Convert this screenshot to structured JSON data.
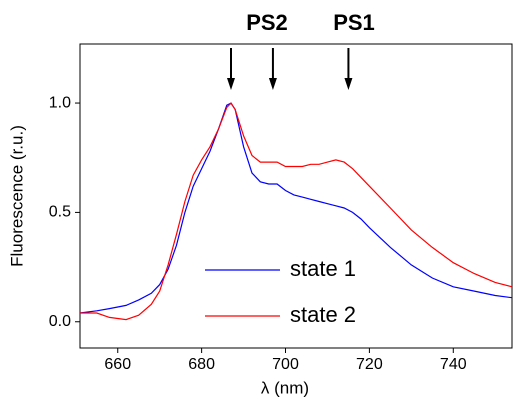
{
  "chart_data": {
    "type": "line",
    "x_label": "λ (nm)",
    "y_label": "Fluorescence (r.u.)",
    "x": [
      651,
      655,
      658,
      662,
      665,
      668,
      670,
      672,
      674,
      676,
      678,
      680,
      682,
      684,
      686,
      687,
      688,
      690,
      692,
      694,
      696,
      698,
      700,
      702,
      704,
      706,
      708,
      710,
      712,
      714,
      716,
      718,
      720,
      725,
      730,
      735,
      740,
      745,
      750,
      754
    ],
    "series": [
      {
        "name": "state 1",
        "color": "#0000ff",
        "values": [
          0.04,
          0.05,
          0.06,
          0.075,
          0.1,
          0.13,
          0.17,
          0.24,
          0.35,
          0.5,
          0.62,
          0.7,
          0.78,
          0.88,
          0.99,
          1.0,
          0.97,
          0.8,
          0.68,
          0.64,
          0.63,
          0.63,
          0.6,
          0.58,
          0.57,
          0.56,
          0.55,
          0.54,
          0.53,
          0.52,
          0.5,
          0.47,
          0.43,
          0.34,
          0.26,
          0.2,
          0.16,
          0.14,
          0.12,
          0.11
        ]
      },
      {
        "name": "state 2",
        "color": "#ff0000",
        "values": [
          0.04,
          0.04,
          0.02,
          0.01,
          0.03,
          0.08,
          0.14,
          0.26,
          0.4,
          0.55,
          0.67,
          0.74,
          0.8,
          0.88,
          0.98,
          1.0,
          0.97,
          0.85,
          0.76,
          0.73,
          0.73,
          0.73,
          0.71,
          0.71,
          0.71,
          0.72,
          0.72,
          0.73,
          0.74,
          0.73,
          0.7,
          0.66,
          0.62,
          0.52,
          0.42,
          0.34,
          0.27,
          0.22,
          0.18,
          0.16
        ]
      }
    ],
    "xlim": [
      651,
      754
    ],
    "xticks": [
      660,
      680,
      700,
      720,
      740
    ],
    "ylim": [
      -0.12,
      1.27
    ],
    "yticks": [
      {
        "value": 0,
        "label": "0.0"
      },
      0.5,
      {
        "value": 1,
        "label": "1.0"
      }
    ],
    "legend": "lower center",
    "annotations": [
      {
        "text": "PS2"
      },
      {
        "text": "PS1"
      }
    ],
    "arrows": [
      687,
      697,
      715
    ]
  }
}
